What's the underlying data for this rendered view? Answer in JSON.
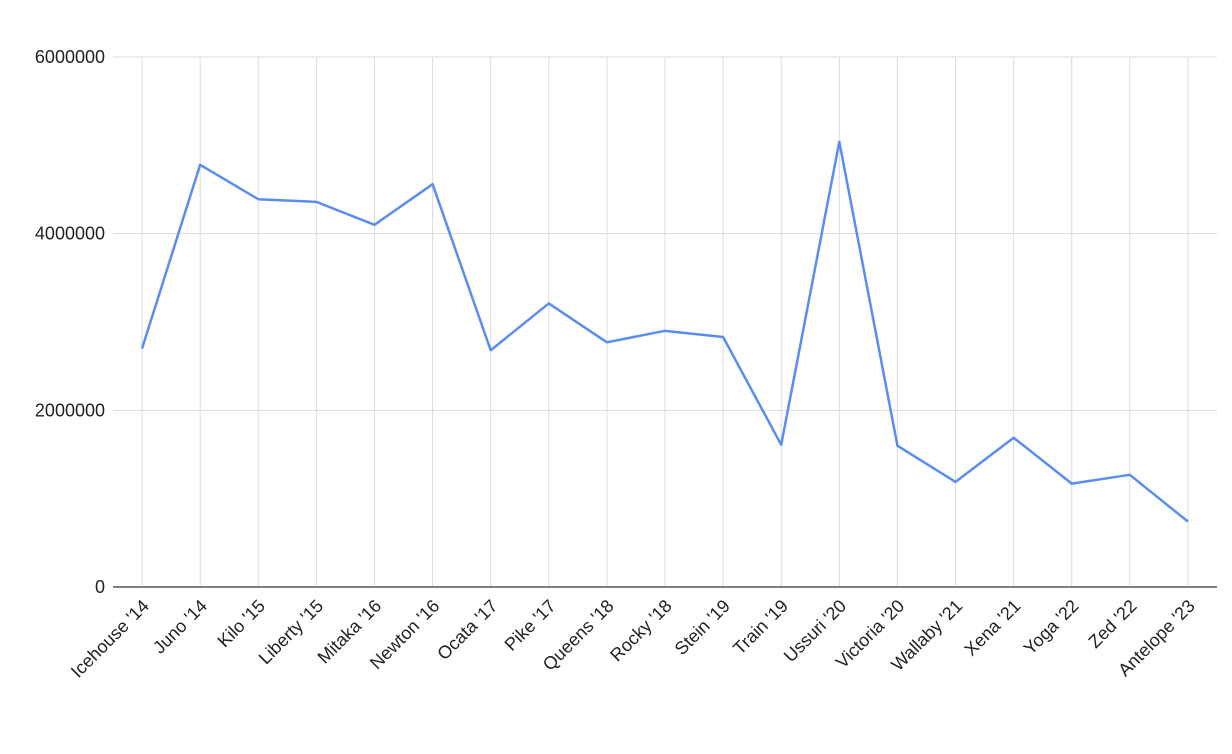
{
  "chart_data": {
    "type": "line",
    "categories": [
      "Icehouse '14",
      "Juno '14",
      "Kilo '15",
      "Liberty '15",
      "Mitaka '16",
      "Newton '16",
      "Ocata '17",
      "Pike '17",
      "Queens '18",
      "Rocky '18",
      "Stein '19",
      "Train '19",
      "Ussuri '20",
      "Victoria '20",
      "Wallaby '21",
      "Xena '21",
      "Yoga '22",
      "Zed '22",
      "Antelope '23"
    ],
    "values": [
      2700000,
      4780000,
      4390000,
      4360000,
      4100000,
      4560000,
      2680000,
      3210000,
      2770000,
      2900000,
      2830000,
      1610000,
      5040000,
      1600000,
      1190000,
      1690000,
      1170000,
      1270000,
      740000
    ],
    "color": "#5b8def",
    "ylim": [
      0,
      6000000
    ],
    "yticks": [
      0,
      2000000,
      4000000,
      6000000
    ],
    "grid": true
  }
}
